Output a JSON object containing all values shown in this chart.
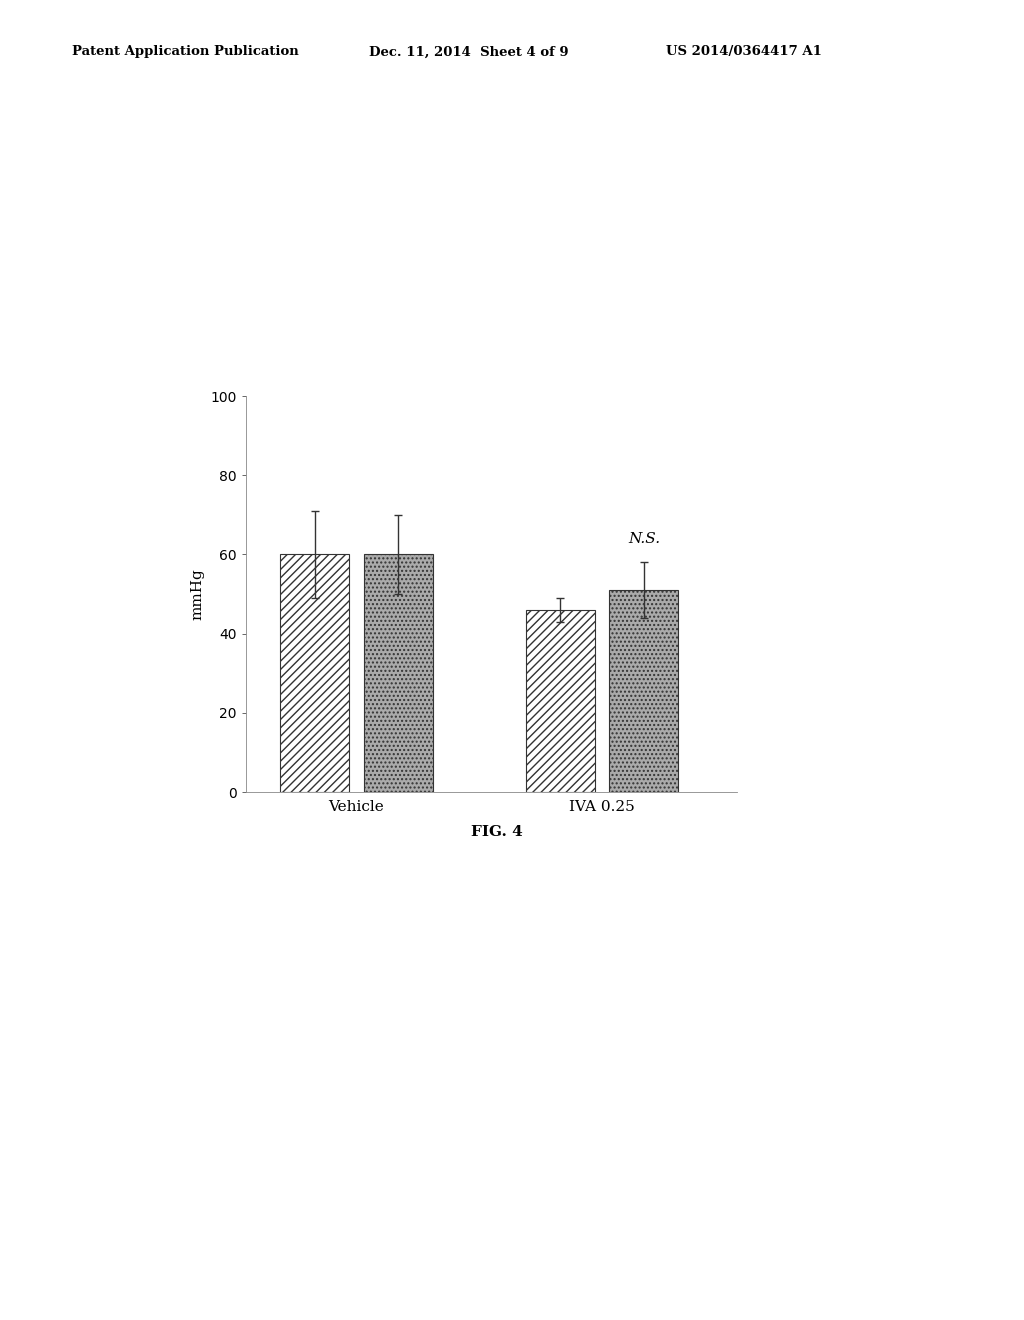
{
  "groups": [
    "Vehicle",
    "IVA 0.25"
  ],
  "bar1_values": [
    60,
    46
  ],
  "bar2_values": [
    60,
    51
  ],
  "bar1_errors": [
    11,
    3
  ],
  "bar2_errors": [
    10,
    7
  ],
  "ylabel": "mmHg",
  "ylim": [
    0,
    100
  ],
  "yticks": [
    0,
    20,
    40,
    60,
    80,
    100
  ],
  "ns_label": "N.S.",
  "fig_label": "FIG. 4",
  "header_left": "Patent Application Publication",
  "header_mid": "Dec. 11, 2014  Sheet 4 of 9",
  "header_right": "US 2014/0364417 A1",
  "bar_width": 0.28
}
